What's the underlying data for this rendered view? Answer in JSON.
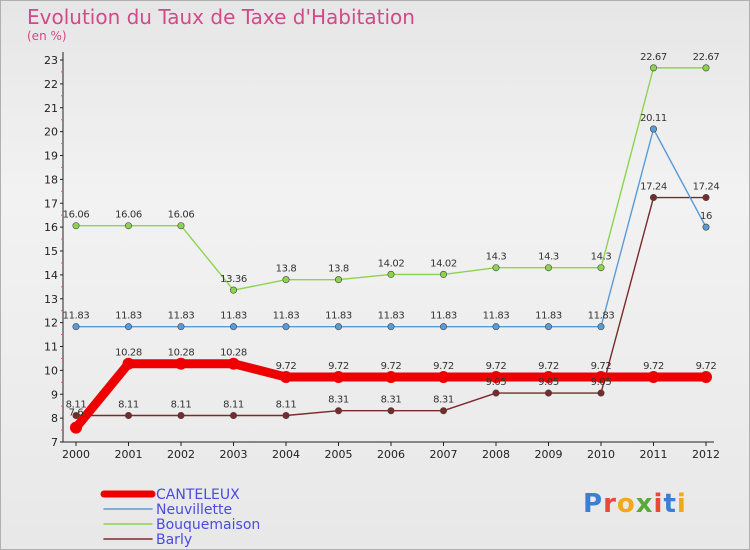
{
  "header": {
    "title": "Evolution du Taux de Taxe d'Habitation",
    "subtitle": "(en %)"
  },
  "logo": {
    "text": "Proxiti"
  },
  "colors": {
    "title": "#d14a8a",
    "legend_text": "#4a4ae0",
    "axis": "#222222"
  },
  "chart_data": {
    "type": "line",
    "title": "Evolution du Taux de Taxe d'Habitation",
    "ylabel": "(en %)",
    "xlabel": "",
    "categories": [
      "2000",
      "2001",
      "2002",
      "2003",
      "2004",
      "2005",
      "2006",
      "2007",
      "2008",
      "2009",
      "2010",
      "2011",
      "2012"
    ],
    "yticks": [
      7,
      8,
      9,
      10,
      11,
      12,
      13,
      14,
      15,
      16,
      17,
      18,
      19,
      20,
      21,
      22,
      23
    ],
    "ylim": [
      7,
      23
    ],
    "grid": false,
    "legend_position": "bottom-left",
    "series": [
      {
        "name": "CANTELEUX",
        "color": "#ee0000",
        "values": [
          7.6,
          10.28,
          10.28,
          10.28,
          9.72,
          9.72,
          9.72,
          9.72,
          9.72,
          9.72,
          9.72,
          9.72,
          9.72
        ],
        "labels": [
          "7.6",
          "10.28",
          "10.28",
          "10.28",
          "9.72",
          "9.72",
          "9.72",
          "9.72",
          "9.72",
          "9.72",
          "9.72",
          "9.72",
          "9.72"
        ]
      },
      {
        "name": "Neuvillette",
        "color": "#5b9bd5",
        "values": [
          11.83,
          11.83,
          11.83,
          11.83,
          11.83,
          11.83,
          11.83,
          11.83,
          11.83,
          11.83,
          11.83,
          20.11,
          16
        ],
        "labels": [
          "11.83",
          "11.83",
          "11.83",
          "11.83",
          "11.83",
          "11.83",
          "11.83",
          "11.83",
          "11.83",
          "11.83",
          "11.83",
          "20.11",
          "16"
        ]
      },
      {
        "name": "Bouquemaison",
        "color": "#8ed34f",
        "values": [
          16.06,
          16.06,
          16.06,
          13.36,
          13.8,
          13.8,
          14.02,
          14.02,
          14.3,
          14.3,
          14.3,
          22.67,
          22.67
        ],
        "labels": [
          "16.06",
          "16.06",
          "16.06",
          "13.36",
          "13.8",
          "13.8",
          "14.02",
          "14.02",
          "14.3",
          "14.3",
          "14.3",
          "22.67",
          "22.67"
        ]
      },
      {
        "name": "Barly",
        "color": "#7a2a2a",
        "values": [
          8.11,
          8.11,
          8.11,
          8.11,
          8.11,
          8.31,
          8.31,
          8.31,
          9.05,
          9.05,
          9.05,
          17.24,
          17.24
        ],
        "labels": [
          "8.11",
          "8.11",
          "8.11",
          "8.11",
          "8.11",
          "8.31",
          "8.31",
          "8.31",
          "9.05",
          "9.05",
          "9.05",
          "17.24",
          "17.24"
        ]
      }
    ]
  }
}
